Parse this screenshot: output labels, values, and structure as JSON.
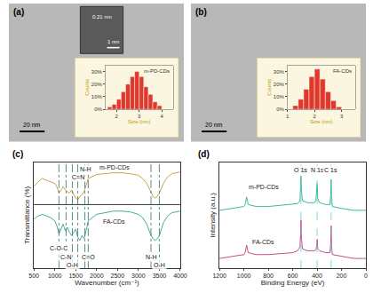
{
  "chart_data": [
    {
      "type": "micrograph",
      "panel_label": "(a)",
      "scale_bar": "20 nm",
      "lattice_spacing": "0.21 nm",
      "inset_scale_bar": "1 nm",
      "histogram": {
        "type": "histogram",
        "title": "m-PD-CDs",
        "x_label": "Size (nm)",
        "y_label": "Counts",
        "bins": [
          1.6,
          1.8,
          2.0,
          2.2,
          2.4,
          2.6,
          2.8,
          3.0,
          3.2,
          3.4,
          3.6,
          3.8,
          4.0
        ],
        "values": [
          2,
          4,
          8,
          14,
          20,
          26,
          30,
          26,
          18,
          12,
          6,
          3
        ],
        "color": "#e0392b",
        "xlim": [
          1.5,
          4.5
        ],
        "xticks": [
          2,
          3,
          4
        ],
        "ylim": [
          0,
          35
        ],
        "yticks": [
          {
            "value": 0,
            "label": "0%"
          },
          {
            "value": 10,
            "label": "10%"
          },
          {
            "value": 20,
            "label": "20%"
          },
          {
            "value": 30,
            "label": "30%"
          }
        ]
      }
    },
    {
      "type": "micrograph",
      "panel_label": "(b)",
      "scale_bar": "20 nm",
      "histogram": {
        "type": "histogram",
        "title": "FA-CDs",
        "x_label": "Size (nm)",
        "y_label": "Counts",
        "bins": [
          1.2,
          1.4,
          1.6,
          1.8,
          2.0,
          2.2,
          2.4,
          2.6,
          2.8,
          3.0
        ],
        "values": [
          3,
          8,
          16,
          26,
          32,
          24,
          14,
          7,
          2
        ],
        "color": "#e0392b",
        "xlim": [
          1.0,
          3.5
        ],
        "xticks": [
          1,
          2,
          3
        ],
        "ylim": [
          0,
          35
        ],
        "yticks": [
          {
            "value": 0,
            "label": "0%"
          },
          {
            "value": 10,
            "label": "10%"
          },
          {
            "value": 20,
            "label": "20%"
          },
          {
            "value": 30,
            "label": "30%"
          }
        ]
      }
    },
    {
      "type": "line",
      "panel_label": "(c)",
      "x_label": "Wavenumber (cm⁻¹)",
      "y_label": "Transmittance (%)",
      "xlim": [
        500,
        4000
      ],
      "xticks": [
        500,
        1000,
        1500,
        2000,
        2500,
        3000,
        3500,
        4000
      ],
      "ylim": [
        -30,
        100
      ],
      "tick_labels": "x",
      "series": [
        {
          "name": "m-PD-CDs",
          "color": "#c9a24a",
          "x": [
            500,
            600,
            700,
            800,
            900,
            1000,
            1050,
            1100,
            1150,
            1200,
            1250,
            1300,
            1350,
            1400,
            1450,
            1500,
            1550,
            1600,
            1650,
            1700,
            1750,
            1800,
            2000,
            2200,
            2400,
            2600,
            2800,
            3000,
            3100,
            3200,
            3300,
            3350,
            3400,
            3450,
            3500,
            3600,
            3700,
            3800,
            4000
          ],
          "values": [
            70,
            76,
            80,
            78,
            76,
            74,
            70,
            62,
            66,
            70,
            66,
            64,
            62,
            66,
            60,
            56,
            54,
            58,
            60,
            64,
            72,
            80,
            85,
            86,
            87,
            87,
            86,
            84,
            80,
            74,
            62,
            58,
            56,
            58,
            62,
            74,
            82,
            86,
            88
          ]
        },
        {
          "name": "FA-CDs",
          "color": "#4aa89a",
          "x": [
            500,
            600,
            700,
            800,
            900,
            1000,
            1050,
            1100,
            1150,
            1200,
            1250,
            1300,
            1350,
            1400,
            1450,
            1500,
            1550,
            1600,
            1650,
            1700,
            1750,
            1800,
            2000,
            2200,
            2400,
            2600,
            2800,
            3000,
            3100,
            3200,
            3300,
            3350,
            3400,
            3450,
            3500,
            3600,
            3700,
            3800,
            4000
          ],
          "values": [
            30,
            34,
            36,
            34,
            32,
            28,
            22,
            12,
            18,
            24,
            16,
            20,
            14,
            10,
            14,
            18,
            8,
            4,
            10,
            6,
            16,
            28,
            36,
            38,
            40,
            40,
            39,
            36,
            32,
            24,
            10,
            6,
            4,
            6,
            10,
            26,
            34,
            38,
            40
          ]
        }
      ],
      "annotations": [
        {
          "text": "C-O-C",
          "x": 1100,
          "y": -6
        },
        {
          "text": "C-N",
          "x": 1270,
          "y": -16
        },
        {
          "text": "O-H",
          "x": 1420,
          "y": -26
        },
        {
          "text": "C=O",
          "x": 1800,
          "y": -16
        },
        {
          "text": "C=N",
          "x": 1550,
          "y": 82
        },
        {
          "text": "N-H",
          "x": 1720,
          "y": 92
        },
        {
          "text": "N-H",
          "x": 3300,
          "y": -16
        },
        {
          "text": "O-H",
          "x": 3500,
          "y": -26
        }
      ]
    },
    {
      "type": "line",
      "panel_label": "(d)",
      "x_label": "Binding Energy (eV)",
      "y_label": "Intensity (a.u.)",
      "xlim": [
        1200,
        0
      ],
      "xticks": [
        1200,
        1000,
        800,
        600,
        400,
        200,
        0
      ],
      "ylim": [
        0,
        110
      ],
      "tick_labels": "x",
      "series": [
        {
          "name": "m-PD-CDs",
          "color": "#3fb8a0",
          "x": [
            1200,
            1100,
            1000,
            990,
            978,
            965,
            900,
            800,
            700,
            600,
            560,
            540,
            535,
            532,
            528,
            520,
            480,
            420,
            410,
            402,
            399,
            395,
            380,
            330,
            295,
            288,
            285,
            282,
            275,
            200,
            100,
            0
          ],
          "values": [
            60,
            62,
            64,
            66,
            74,
            66,
            64,
            64,
            65,
            66,
            67,
            70,
            82,
            96,
            80,
            70,
            68,
            68,
            70,
            80,
            88,
            72,
            68,
            66,
            66,
            76,
            92,
            76,
            64,
            62,
            60,
            60
          ]
        },
        {
          "name": "FA-CDs",
          "color": "#c0508a",
          "x": [
            1200,
            1100,
            1000,
            990,
            978,
            965,
            900,
            800,
            700,
            600,
            560,
            540,
            535,
            532,
            528,
            520,
            480,
            420,
            410,
            402,
            399,
            395,
            380,
            330,
            295,
            288,
            285,
            282,
            275,
            200,
            100,
            0
          ],
          "values": [
            10,
            12,
            14,
            16,
            24,
            16,
            14,
            14,
            15,
            16,
            18,
            22,
            36,
            50,
            30,
            20,
            18,
            18,
            19,
            24,
            30,
            20,
            18,
            16,
            16,
            26,
            44,
            24,
            14,
            12,
            10,
            10
          ]
        }
      ],
      "annotations": [
        {
          "text": "O 1s",
          "x": 532,
          "y": 102
        },
        {
          "text": "N 1s",
          "x": 400,
          "y": 102
        },
        {
          "text": "C 1s",
          "x": 285,
          "y": 102
        }
      ]
    }
  ]
}
